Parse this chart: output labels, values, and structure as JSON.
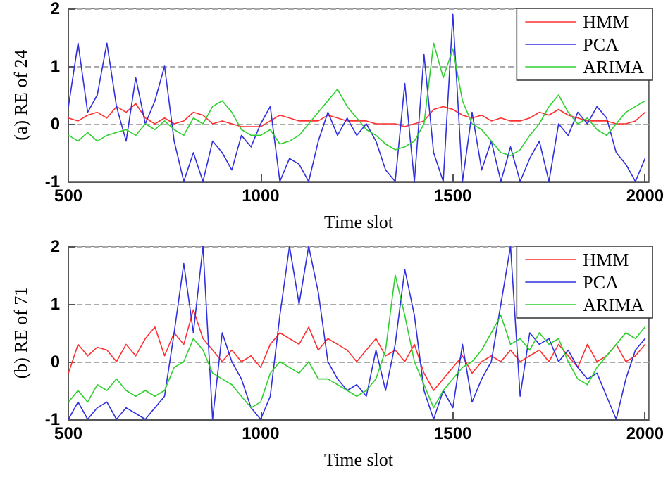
{
  "chart_data": [
    {
      "type": "line",
      "xlabel": "Time slot",
      "ylabel": "(a) RE of 24",
      "x": [
        500,
        525,
        550,
        575,
        600,
        625,
        650,
        675,
        700,
        725,
        750,
        775,
        800,
        825,
        850,
        875,
        900,
        925,
        950,
        975,
        1000,
        1025,
        1050,
        1075,
        1100,
        1125,
        1150,
        1175,
        1200,
        1225,
        1250,
        1275,
        1300,
        1325,
        1350,
        1375,
        1400,
        1425,
        1450,
        1475,
        1500,
        1525,
        1550,
        1575,
        1600,
        1625,
        1650,
        1675,
        1700,
        1725,
        1750,
        1775,
        1800,
        1825,
        1850,
        1875,
        1900,
        1925,
        1950,
        1975,
        2000
      ],
      "xlim": [
        500,
        2010
      ],
      "xticks": [
        500,
        1000,
        1500,
        2000
      ],
      "ylim": [
        -1,
        2
      ],
      "yticks": [
        -1,
        0,
        1,
        2
      ],
      "grid": "y",
      "legend": "top right",
      "line_style": "solid",
      "marker": "none",
      "series": [
        {
          "name": "HMM",
          "color": "#ff3030",
          "values": [
            0.1,
            0.05,
            0.15,
            0.2,
            0.1,
            0.3,
            0.2,
            0.35,
            0.1,
            0.0,
            0.1,
            0.0,
            0.05,
            0.2,
            0.15,
            0.0,
            0.05,
            0.0,
            -0.05,
            -0.05,
            -0.05,
            0.05,
            0.15,
            0.1,
            0.05,
            0.05,
            0.05,
            0.15,
            0.1,
            0.05,
            0.05,
            0.05,
            0.0,
            0.0,
            0.0,
            -0.05,
            0.0,
            0.05,
            0.25,
            0.3,
            0.25,
            0.15,
            0.1,
            0.15,
            0.05,
            0.1,
            0.05,
            0.05,
            0.1,
            0.2,
            0.15,
            0.25,
            0.15,
            0.1,
            0.05,
            0.05,
            0.05,
            0.0,
            0.0,
            0.05,
            0.2
          ]
        },
        {
          "name": "PCA",
          "color": "#3030e0",
          "values": [
            0.3,
            1.4,
            0.2,
            0.5,
            1.4,
            0.3,
            -0.3,
            0.8,
            0.0,
            0.4,
            1.0,
            -0.3,
            -1.0,
            -0.5,
            -1.0,
            -0.3,
            -0.5,
            -0.8,
            -0.2,
            -0.4,
            0.0,
            0.3,
            -1.0,
            -0.6,
            -0.7,
            -1.0,
            -0.3,
            0.2,
            -0.2,
            0.1,
            -0.2,
            0.0,
            -0.3,
            -0.8,
            -1.0,
            0.7,
            -1.0,
            1.2,
            -0.5,
            -1.0,
            1.9,
            -1.0,
            0.2,
            -0.8,
            -0.3,
            -1.0,
            -0.4,
            -1.0,
            -0.6,
            -0.3,
            -1.0,
            0.0,
            -0.2,
            0.2,
            0.0,
            0.3,
            0.1,
            -0.5,
            -0.7,
            -1.0,
            -0.6
          ]
        },
        {
          "name": "ARIMA",
          "color": "#30d030",
          "values": [
            -0.2,
            -0.3,
            -0.15,
            -0.3,
            -0.2,
            -0.15,
            -0.1,
            -0.2,
            0.0,
            -0.1,
            0.05,
            -0.1,
            -0.2,
            0.1,
            0.0,
            0.3,
            0.4,
            0.2,
            -0.1,
            -0.2,
            -0.2,
            -0.1,
            -0.35,
            -0.3,
            -0.2,
            0.0,
            0.2,
            0.4,
            0.6,
            0.3,
            0.1,
            -0.1,
            -0.2,
            -0.35,
            -0.45,
            -0.4,
            -0.3,
            0.0,
            1.4,
            0.8,
            1.3,
            0.4,
            0.0,
            -0.1,
            -0.3,
            -0.5,
            -0.55,
            -0.45,
            -0.2,
            0.0,
            0.3,
            0.5,
            0.2,
            0.0,
            0.1,
            -0.1,
            -0.2,
            0.0,
            0.2,
            0.3,
            0.4
          ]
        }
      ]
    },
    {
      "type": "line",
      "xlabel": "Time slot",
      "ylabel": "(b) RE of 71",
      "x": [
        500,
        525,
        550,
        575,
        600,
        625,
        650,
        675,
        700,
        725,
        750,
        775,
        800,
        825,
        850,
        875,
        900,
        925,
        950,
        975,
        1000,
        1025,
        1050,
        1075,
        1100,
        1125,
        1150,
        1175,
        1200,
        1225,
        1250,
        1275,
        1300,
        1325,
        1350,
        1375,
        1400,
        1425,
        1450,
        1475,
        1500,
        1525,
        1550,
        1575,
        1600,
        1625,
        1650,
        1675,
        1700,
        1725,
        1750,
        1775,
        1800,
        1825,
        1850,
        1875,
        1900,
        1925,
        1950,
        1975,
        2000
      ],
      "xlim": [
        500,
        2010
      ],
      "xticks": [
        500,
        1000,
        1500,
        2000
      ],
      "ylim": [
        -1,
        2
      ],
      "yticks": [
        -1,
        0,
        1,
        2
      ],
      "grid": "y",
      "legend": "top right",
      "line_style": "solid",
      "marker": "none",
      "series": [
        {
          "name": "HMM",
          "color": "#ff3030",
          "values": [
            -0.2,
            0.3,
            0.1,
            0.25,
            0.2,
            0.0,
            0.3,
            0.1,
            0.4,
            0.6,
            0.1,
            0.5,
            0.3,
            0.9,
            0.4,
            0.2,
            0.0,
            0.2,
            0.0,
            0.1,
            -0.1,
            0.3,
            0.5,
            0.4,
            0.3,
            0.6,
            0.2,
            0.4,
            0.3,
            0.2,
            0.0,
            0.2,
            0.4,
            0.1,
            0.2,
            0.0,
            0.3,
            -0.2,
            -0.5,
            -0.3,
            -0.1,
            0.1,
            -0.2,
            0.0,
            0.1,
            0.0,
            0.2,
            0.0,
            0.1,
            0.2,
            0.0,
            0.3,
            0.1,
            -0.1,
            0.3,
            0.0,
            0.1,
            0.3,
            0.0,
            0.1,
            0.3
          ]
        },
        {
          "name": "PCA",
          "color": "#3030e0",
          "values": [
            -1.0,
            -0.7,
            -1.0,
            -0.8,
            -0.7,
            -1.0,
            -0.8,
            -0.9,
            -1.0,
            -0.8,
            -0.6,
            0.5,
            1.7,
            0.5,
            2.0,
            -1.0,
            0.5,
            0.0,
            -0.3,
            -0.8,
            -1.0,
            -0.6,
            0.8,
            2.0,
            1.0,
            2.0,
            1.2,
            0.0,
            -0.3,
            -0.5,
            -0.4,
            -0.6,
            0.2,
            -0.5,
            0.3,
            1.6,
            0.8,
            -0.5,
            -1.0,
            -0.5,
            -0.8,
            0.3,
            -0.7,
            -0.3,
            0.0,
            1.0,
            2.0,
            -0.6,
            0.5,
            0.3,
            0.4,
            0.0,
            0.2,
            -0.1,
            -0.3,
            -0.2,
            -0.6,
            -1.0,
            -0.3,
            0.2,
            0.4
          ]
        },
        {
          "name": "ARIMA",
          "color": "#30d030",
          "values": [
            -0.7,
            -0.5,
            -0.7,
            -0.4,
            -0.5,
            -0.3,
            -0.5,
            -0.6,
            -0.5,
            -0.6,
            -0.5,
            -0.1,
            0.0,
            0.4,
            0.2,
            -0.2,
            -0.3,
            -0.4,
            -0.6,
            -0.8,
            -0.7,
            -0.2,
            0.0,
            -0.1,
            -0.2,
            0.0,
            -0.3,
            -0.3,
            -0.4,
            -0.5,
            -0.6,
            -0.5,
            -0.3,
            0.2,
            1.5,
            0.8,
            0.0,
            -0.4,
            -0.8,
            -0.5,
            -0.3,
            -0.1,
            0.0,
            0.2,
            0.5,
            0.8,
            0.3,
            0.4,
            0.2,
            0.5,
            0.3,
            0.4,
            0.0,
            -0.3,
            -0.4,
            -0.1,
            0.1,
            0.3,
            0.5,
            0.4,
            0.6
          ]
        }
      ]
    }
  ]
}
